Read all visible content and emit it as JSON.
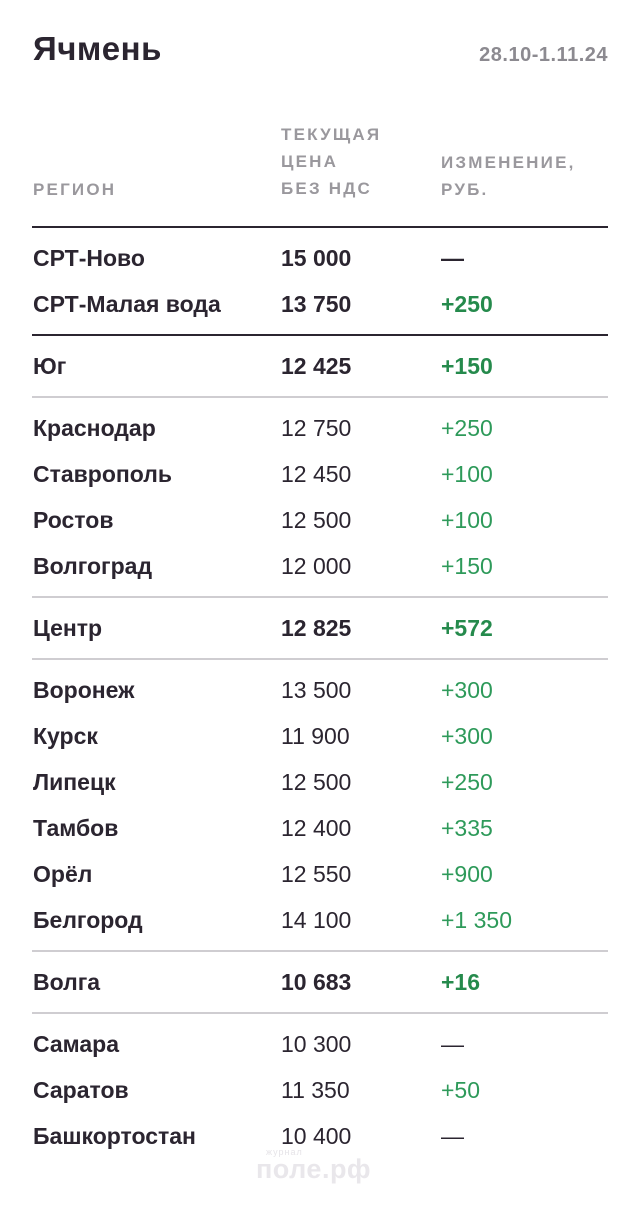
{
  "title": "Ячмень",
  "date": "28.10-1.11.24",
  "headers": {
    "region": "РЕГИОН",
    "price": [
      "ТЕКУЩАЯ",
      "ЦЕНА",
      "БЕЗ НДС"
    ],
    "change": [
      "ИЗМЕНЕНИЕ,",
      "РУБ."
    ]
  },
  "rows": [
    {
      "region": "СРТ-Ново",
      "price": "15 000",
      "change": "—"
    },
    {
      "region": "СРТ-Малая вода",
      "price": "13 750",
      "change": "+250"
    },
    {
      "region": "Юг",
      "price": "12 425",
      "change": "+150"
    },
    {
      "region": "Краснодар",
      "price": "12 750",
      "change": "+250"
    },
    {
      "region": "Ставрополь",
      "price": "12 450",
      "change": "+100"
    },
    {
      "region": "Ростов",
      "price": "12 500",
      "change": "+100"
    },
    {
      "region": "Волгоград",
      "price": "12 000",
      "change": "+150"
    },
    {
      "region": "Центр",
      "price": "12 825",
      "change": "+572"
    },
    {
      "region": "Воронеж",
      "price": "13 500",
      "change": "+300"
    },
    {
      "region": "Курск",
      "price": "11 900",
      "change": "+300"
    },
    {
      "region": "Липецк",
      "price": "12 500",
      "change": "+250"
    },
    {
      "region": "Тамбов",
      "price": "12 400",
      "change": "+335"
    },
    {
      "region": "Орёл",
      "price": "12 550",
      "change": "+900"
    },
    {
      "region": "Белгород",
      "price": "14 100",
      "change": "+1 350"
    },
    {
      "region": "Волга",
      "price": "10 683",
      "change": "+16"
    },
    {
      "region": "Самара",
      "price": "10 300",
      "change": "—"
    },
    {
      "region": "Саратов",
      "price": "11 350",
      "change": "+50"
    },
    {
      "region": "Башкортостан",
      "price": "10 400",
      "change": "—"
    }
  ],
  "watermark": {
    "small": "журнал",
    "big": "поле.рф"
  },
  "colors": {
    "positive": "#2e9a5a",
    "positive_bold": "#258a4c",
    "text": "#2b2530",
    "muted": "#9a989d"
  }
}
